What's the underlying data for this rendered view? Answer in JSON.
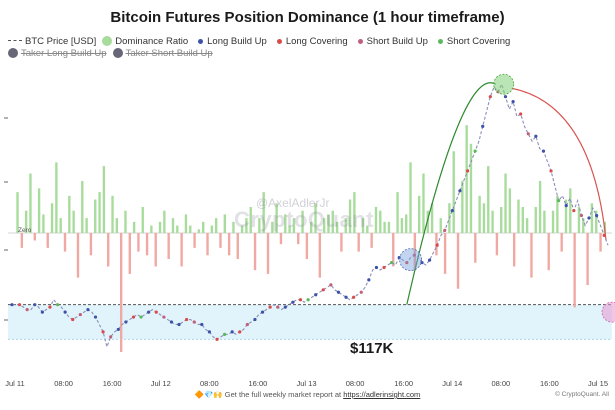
{
  "title": "Bitcoin Futures Position Dominance (1 hour timeframe)",
  "legend": [
    {
      "label": "BTC Price [USD]",
      "symbol": "dash",
      "color": "#555555",
      "enabled": true
    },
    {
      "label": "Dominance Ratio",
      "symbol": "circle",
      "color": "#a8dc9c",
      "enabled": true
    },
    {
      "label": "Long Build Up",
      "symbol": "dot",
      "color": "#3d52a8",
      "enabled": true
    },
    {
      "label": "Long Covering",
      "symbol": "dot",
      "color": "#d94b4b",
      "enabled": true
    },
    {
      "label": "Short Build Up",
      "symbol": "dot",
      "color": "#c0607c",
      "enabled": true
    },
    {
      "label": "Short Covering",
      "symbol": "dot",
      "color": "#5cb85c",
      "enabled": true
    },
    {
      "label": "Taker Long Build Up",
      "symbol": "circle",
      "color": "#666677",
      "enabled": false
    },
    {
      "label": "Taker Short Build Up",
      "symbol": "circle",
      "color": "#666677",
      "enabled": false
    }
  ],
  "zero_label": "Zero",
  "price_annotation": "$117K",
  "watermark": {
    "author": "@AxelAdlerJr",
    "brand": "CryptoQuant"
  },
  "footer": {
    "text": "Get the full weekly market report at",
    "link": "https://adlerinsight.com",
    "emoji": "🔶💎🙌"
  },
  "credit": "© CryptoQuant. All",
  "colors": {
    "bar_positive": "#a8dc9c",
    "bar_negative": "#f0a8a2",
    "band": "#e2f4fb",
    "price_line": "#8a8fb8",
    "green_arc": "#2f8a2f",
    "red_arc": "#d9534f"
  },
  "chart_data": {
    "type": "bar+line",
    "x_ticks": [
      "Jul 11",
      "08:00",
      "16:00",
      "Jul 12",
      "08:00",
      "16:00",
      "Jul 13",
      "08:00",
      "16:00",
      "Jul 14",
      "08:00",
      "16:00",
      "Jul 15"
    ],
    "dominance_ratio": [
      0,
      0.55,
      -0.2,
      0.3,
      0.8,
      -0.1,
      0.6,
      0.25,
      -0.2,
      0.4,
      0.95,
      0.2,
      -0.25,
      0.5,
      0.3,
      -0.6,
      0.7,
      0.2,
      -0.3,
      0.45,
      0.55,
      0.9,
      -0.45,
      0.5,
      0.2,
      -1.6,
      0.3,
      -0.55,
      0.15,
      -0.25,
      0.35,
      -0.3,
      0.1,
      -0.45,
      0.15,
      0.3,
      -0.35,
      0.2,
      0.1,
      -0.45,
      0.25,
      0.1,
      -0.2,
      0.05,
      0.15,
      -0.3,
      0.1,
      0.2,
      -0.2,
      0.25,
      -0.3,
      0.15,
      -0.35,
      0.1,
      0.2,
      0.35,
      -0.5,
      0.2,
      0.55,
      -0.55,
      0.15,
      0.4,
      -0.15,
      0.25,
      0.1,
      0.2,
      -0.15,
      0.3,
      -0.35,
      0.15,
      0.4,
      -0.6,
      0.2,
      0.25,
      0.3,
      0.15,
      -0.25,
      0.2,
      0.45,
      0.55,
      -0.25,
      0.2,
      0.1,
      -0.2,
      0.35,
      0.3,
      0.15,
      0.15,
      -0.45,
      0.55,
      0.2,
      0.25,
      0.95,
      -0.5,
      0.5,
      0.8,
      0.3,
      0.4,
      -0.3,
      0.2,
      -0.55,
      0.4,
      1.1,
      -0.75,
      0.7,
      1.45,
      1.2,
      -0.4,
      0.5,
      0.4,
      0.9,
      0.3,
      -0.3,
      0.35,
      0.8,
      0.6,
      -0.45,
      0.45,
      0.35,
      0.2,
      -0.6,
      0.35,
      0.7,
      0.3,
      -0.5,
      0.3,
      0.5,
      -0.25,
      0.45,
      0.6,
      -1.0,
      0.35,
      0.2,
      -0.7,
      0.4,
      0.3,
      -0.25,
      0.15
    ],
    "btc_price": [
      117.6,
      117.6,
      117.6,
      117.55,
      117.5,
      117.5,
      117.6,
      117.55,
      117.45,
      117.5,
      117.55,
      117.7,
      117.6,
      117.55,
      117.45,
      117.35,
      117.3,
      117.35,
      117.4,
      117.45,
      117.5,
      117.45,
      117.35,
      117.2,
      117.05,
      116.75,
      116.95,
      117.05,
      117.1,
      117.2,
      117.25,
      117.3,
      117.35,
      117.4,
      117.35,
      117.4,
      117.45,
      117.5,
      117.45,
      117.4,
      117.35,
      117.3,
      117.25,
      117.2,
      117.2,
      117.25,
      117.3,
      117.3,
      117.25,
      117.2,
      117.2,
      117.1,
      117.05,
      116.95,
      116.9,
      116.95,
      117.0,
      117.0,
      117.05,
      117.0,
      117.05,
      117.1,
      117.2,
      117.25,
      117.3,
      117.4,
      117.45,
      117.5,
      117.55,
      117.6,
      117.55,
      117.5,
      117.55,
      117.6,
      117.65,
      117.7,
      117.7,
      117.65,
      117.7,
      117.75,
      117.8,
      117.85,
      117.9,
      117.95,
      118.0,
      117.9,
      117.85,
      117.8,
      117.75,
      117.7,
      117.75,
      117.8,
      117.85,
      117.95,
      118.1,
      118.3,
      118.35,
      118.3,
      118.35,
      118.4,
      118.45,
      118.4,
      118.55,
      118.5,
      118.45,
      118.55,
      118.6,
      118.55,
      118.45,
      118.4,
      118.5,
      118.65,
      118.8,
      119.0,
      119.1,
      119.3,
      119.5,
      119.7,
      119.9,
      120.1,
      120.3,
      120.5,
      120.7,
      120.9,
      121.2,
      121.5,
      121.8,
      122.0,
      121.9,
      122.05,
      121.8,
      121.55,
      121.7,
      121.4,
      121.45,
      121.2,
      121.05,
      120.9,
      121.0,
      120.75,
      120.7,
      120.5,
      120.3,
      120.0,
      119.7,
      119.8,
      119.6,
      119.75,
      119.5,
      119.7,
      119.4,
      119.2,
      119.35,
      119.55,
      119.4,
      119.2,
      119.0,
      118.8
    ],
    "reference_lines": {
      "dashed_level": 117.6,
      "band_low": 116.9,
      "band_high": 117.6
    },
    "xlim_hours": [
      0,
      106
    ],
    "price_ylim": [
      116.2,
      122.5
    ],
    "dominance_ylim": [
      -2.2,
      2.3
    ]
  }
}
